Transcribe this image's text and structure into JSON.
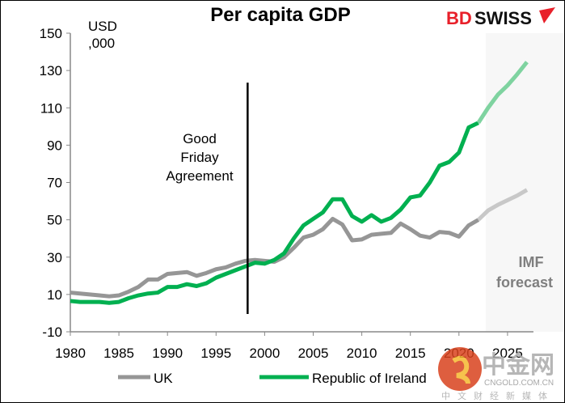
{
  "chart_data": {
    "type": "line",
    "title": "Per capita GDP",
    "ylabel": "USD ,000",
    "ylabel_lines": [
      "USD",
      ",000"
    ],
    "xlabel": "",
    "ylim": [
      -10,
      150
    ],
    "yticks": [
      -10,
      10,
      30,
      50,
      70,
      90,
      110,
      130,
      150
    ],
    "xlim": [
      1980,
      2027
    ],
    "xticks": [
      1980,
      1985,
      1990,
      1995,
      2000,
      2005,
      2010,
      2015,
      2020,
      2025
    ],
    "x": [
      1980,
      1981,
      1982,
      1983,
      1984,
      1985,
      1986,
      1987,
      1988,
      1989,
      1990,
      1991,
      1992,
      1993,
      1994,
      1995,
      1996,
      1997,
      1998,
      1999,
      2000,
      2001,
      2002,
      2003,
      2004,
      2005,
      2006,
      2007,
      2008,
      2009,
      2010,
      2011,
      2012,
      2013,
      2014,
      2015,
      2016,
      2017,
      2018,
      2019,
      2020,
      2021,
      2022,
      2023,
      2024,
      2025,
      2026,
      2027
    ],
    "forecast_start": 2022,
    "series": [
      {
        "name": "UK",
        "color": "#969696",
        "forecast_color": "#c8c8c8",
        "values": [
          11,
          10.5,
          10,
          9.5,
          9,
          9.5,
          11.5,
          14,
          18,
          18,
          21,
          21.5,
          22,
          20,
          21.5,
          23.5,
          24.5,
          26.5,
          28,
          28.5,
          28,
          27.5,
          30,
          35,
          40.5,
          42,
          45,
          50.5,
          47.5,
          39,
          39.5,
          42,
          42.5,
          43,
          48,
          45,
          41.5,
          40.5,
          43.5,
          43,
          41,
          47,
          50,
          55,
          58,
          60.5,
          63,
          66
        ]
      },
      {
        "name": "Republic of Ireland",
        "color": "#00b050",
        "forecast_color": "#7fd3a0",
        "values": [
          6.5,
          6,
          6,
          6,
          5.5,
          6,
          8,
          9.5,
          10.5,
          11,
          14,
          14,
          15.5,
          14.5,
          16,
          19,
          21,
          23,
          25,
          27,
          26.5,
          28.5,
          32,
          40,
          47,
          50.5,
          54,
          61,
          61,
          52,
          49,
          52.5,
          49,
          51,
          55.5,
          62,
          63,
          70,
          79,
          81,
          86,
          99.5,
          102,
          110,
          117,
          122,
          128,
          134.5
        ]
      }
    ],
    "annotations": {
      "event_year": 1998,
      "event_label_lines": [
        "Good",
        "Friday",
        "Agreement"
      ],
      "forecast_label_lines": [
        "IMF",
        "forecast"
      ]
    },
    "legend_position": "bottom",
    "grid": false
  },
  "branding": {
    "logo_text_red": "BD",
    "logo_text_black": "SWISS",
    "watermark": "中金网 CNGOLD.COM.CN 中文财经新媒体"
  },
  "colors": {
    "shade": "#f7f7f7",
    "axis": "#888888",
    "brand_red": "#e8202a"
  }
}
